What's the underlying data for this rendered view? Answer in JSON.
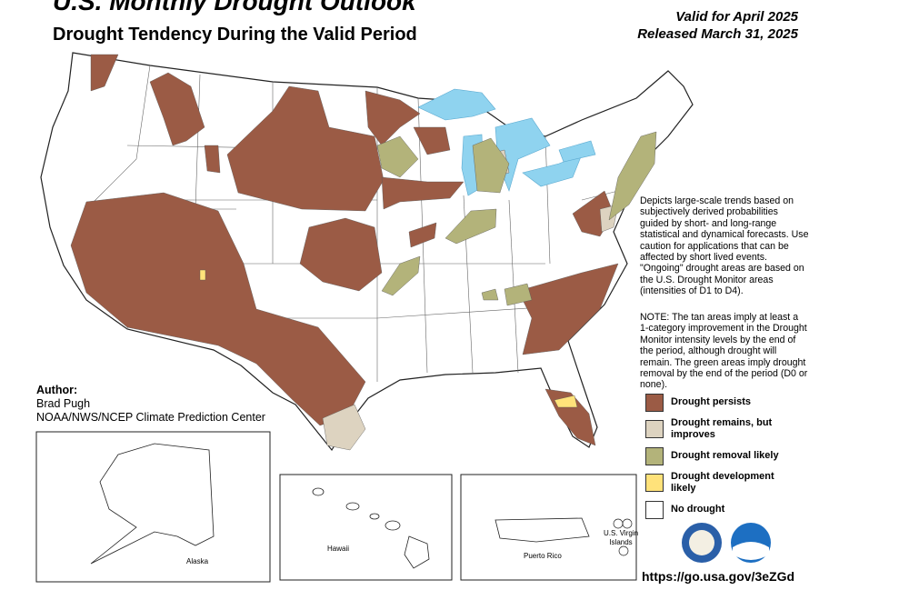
{
  "header": {
    "title": "U.S. Monthly Drought Outlook",
    "subtitle": "Drought Tendency During the Valid Period",
    "valid": "Valid for April 2025",
    "released": "Released March 31, 2025"
  },
  "description": "Depicts large-scale trends based on subjectively derived probabilities guided by short- and long-range statistical and dynamical forecasts. Use caution for applications that can be affected by short lived events. \"Ongoing\" drought areas are based on the U.S. Drought Monitor areas (intensities of D1 to D4).",
  "note": "NOTE: The tan areas imply at least a 1-category improvement in the Drought Monitor intensity levels by the end of the period, although drought will remain. The green areas imply drought removal by the end of the period (D0 or none).",
  "legend": [
    {
      "label": "Drought persists",
      "color": "#9b5b45"
    },
    {
      "label": "Drought remains, but improves",
      "color": "#ddd3c0"
    },
    {
      "label": "Drought removal likely",
      "color": "#b3b37a"
    },
    {
      "label": "Drought development likely",
      "color": "#ffe27a"
    },
    {
      "label": "No drought",
      "color": "#ffffff"
    }
  ],
  "author": {
    "heading": "Author:",
    "name": "Brad Pugh",
    "org": "NOAA/NWS/NCEP Climate Prediction Center"
  },
  "insets": {
    "alaska": "Alaska",
    "hawaii": "Hawaii",
    "puerto_rico": "Puerto Rico",
    "virgin_islands": "U.S. Virgin Islands"
  },
  "url": "https://go.usa.gov/3eZGd"
}
